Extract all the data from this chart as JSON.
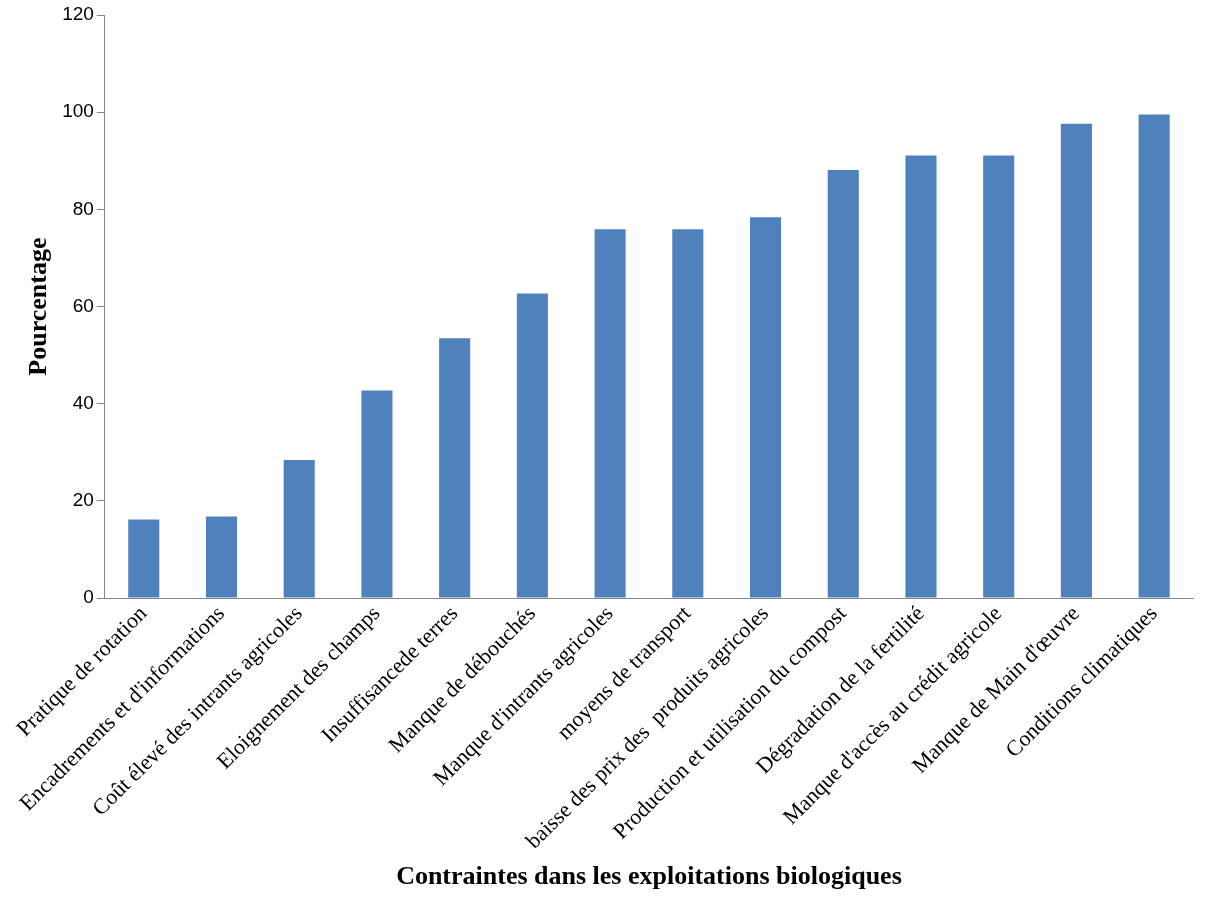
{
  "chart_data": {
    "type": "bar",
    "xlabel": "Contraintes dans les exploitations biologiques",
    "ylabel": "Pourcentage",
    "categories": [
      "Pratique de rotation",
      "Encadrements et d'informations",
      "Coût élevé des intrants agricoles",
      "Eloignement des champs",
      "Insuffisancede terres",
      "Manque de débouchés",
      "Manque d'intrants agricoles",
      "moyens de transport",
      "baisse des prix des  produits agricoles",
      "Production et utilisation du compost",
      "Dégradation de la fertilité",
      "Manque d'accès au crédit agricole",
      "Manque de Main d'œuvre",
      "Conditions climatiques"
    ],
    "values": [
      16.2,
      16.8,
      28.4,
      42.7,
      53.5,
      62.7,
      75.9,
      75.9,
      78.4,
      88.1,
      91.1,
      91.1,
      97.6,
      99.5
    ],
    "color": "#4f81bd",
    "ylim": [
      0,
      120
    ],
    "yticks": [
      0,
      20,
      40,
      60,
      80,
      100,
      120
    ],
    "grid": false,
    "legend": false
  }
}
